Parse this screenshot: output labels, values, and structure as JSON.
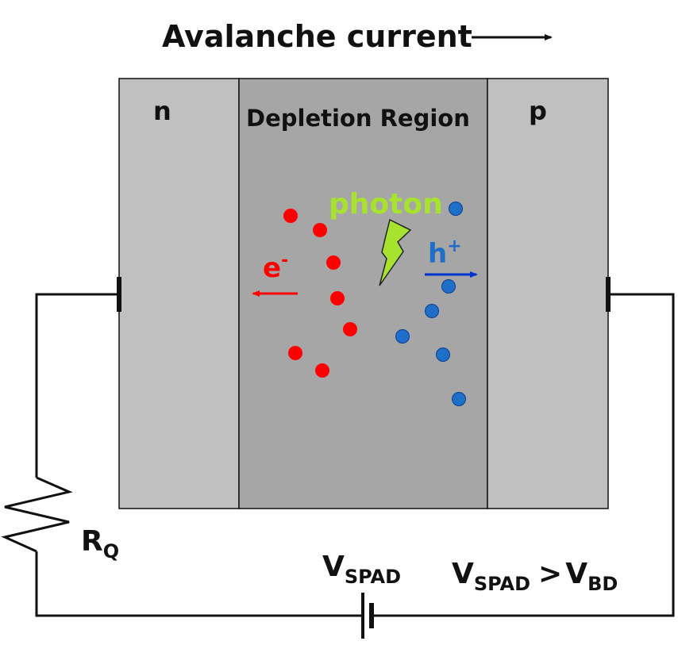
{
  "title": {
    "text": "Avalanche current"
  },
  "regions": {
    "n_label": "n",
    "depletion_label": "Depletion Region",
    "p_label": "p"
  },
  "photon": {
    "label": "photon"
  },
  "carriers": {
    "electron_base": "e",
    "electron_sup": "-",
    "hole_base": "h",
    "hole_sup": "+"
  },
  "circuit": {
    "resistor_base": "R",
    "resistor_sub": "Q",
    "source_base": "V",
    "source_sub": "SPAD",
    "condition_left_base": "V",
    "condition_left_sub": "SPAD",
    "condition_operator": ">",
    "condition_right_base": "V",
    "condition_right_sub": "BD"
  },
  "colors": {
    "n_region": "#c0c0c0",
    "depletion_region": "#a6a6a6",
    "p_region": "#c0c0c0",
    "electron": "#ff0000",
    "hole": "#1f6fc8",
    "hole_arrow": "#0033cc",
    "photon": "#a6e22e",
    "wire": "#111111"
  }
}
